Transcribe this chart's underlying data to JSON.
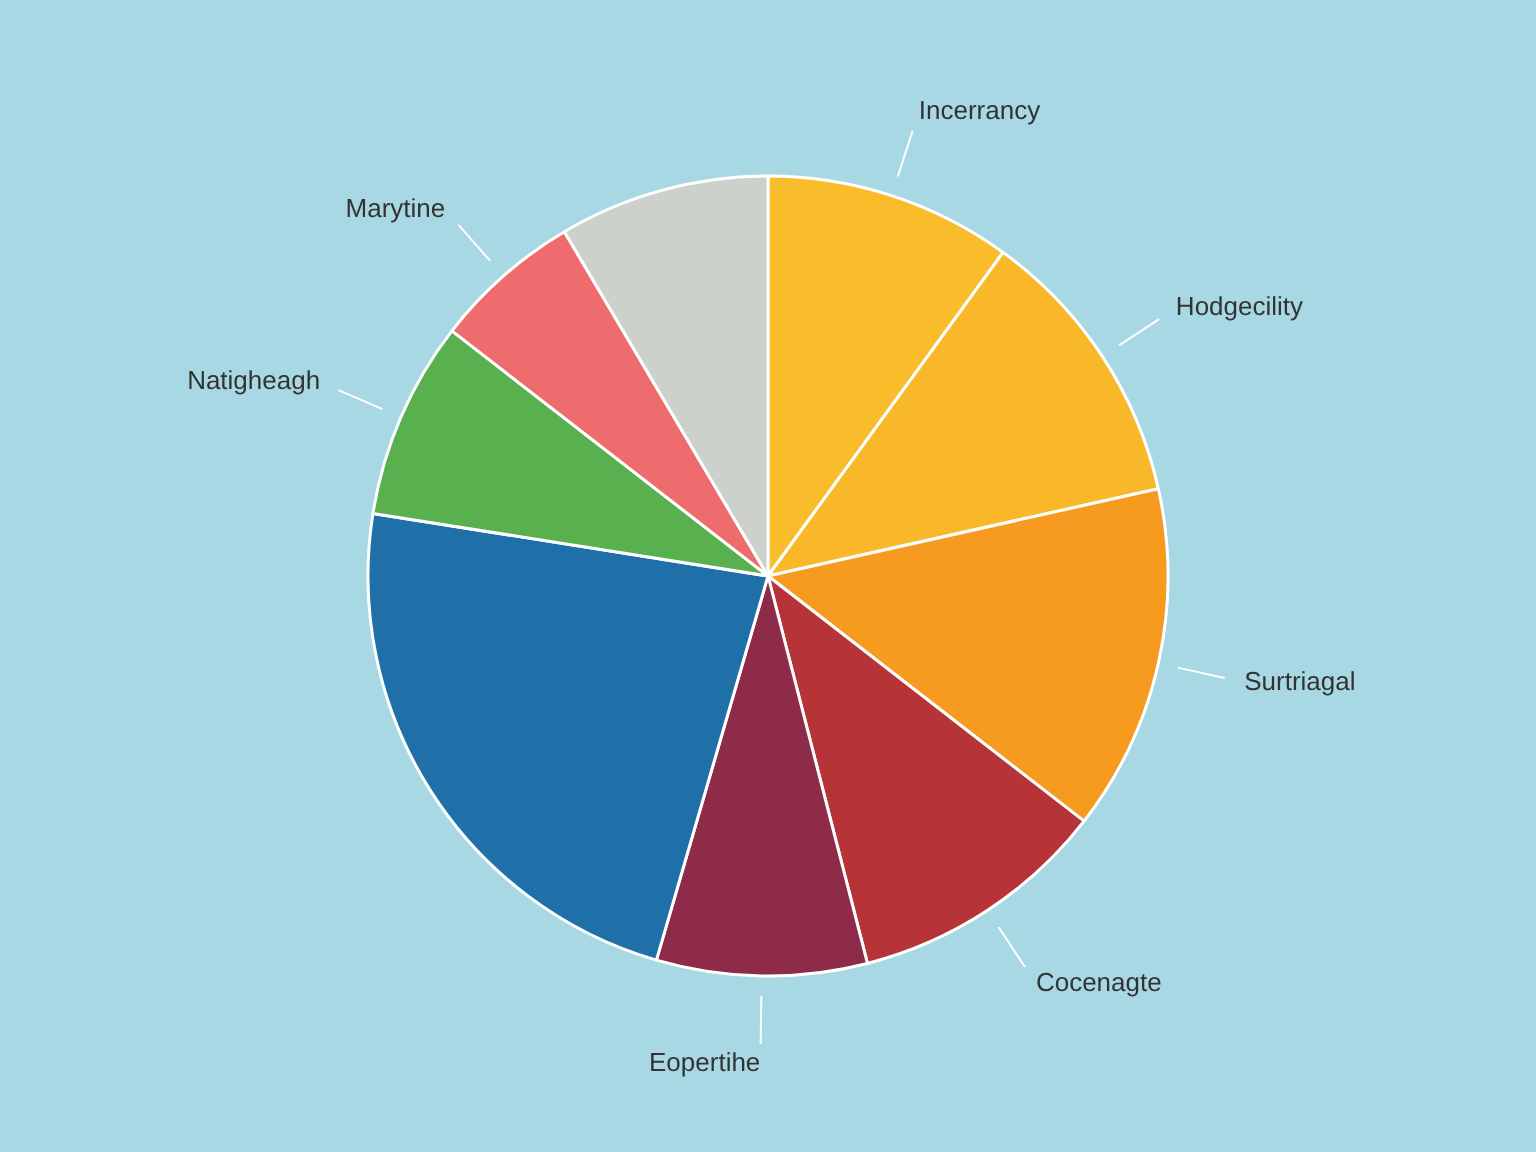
{
  "chart_data": {
    "type": "pie",
    "categories": [
      "Incerrancy",
      "Hodgecility",
      "Surtriagal",
      "Cocenagte",
      "Eopertihe",
      null,
      "Natigheagh",
      "Marytine",
      null
    ],
    "values": [
      10,
      11.5,
      14,
      10.5,
      8.5,
      23,
      8,
      6,
      8.5
    ],
    "colors": [
      "#f9bd2c",
      "#f8b82a",
      "#f79a20",
      "#b63437",
      "#8d2b49",
      "#1f70a8",
      "#58b04f",
      "#ee6c6e",
      "#cdd1cc"
    ]
  }
}
